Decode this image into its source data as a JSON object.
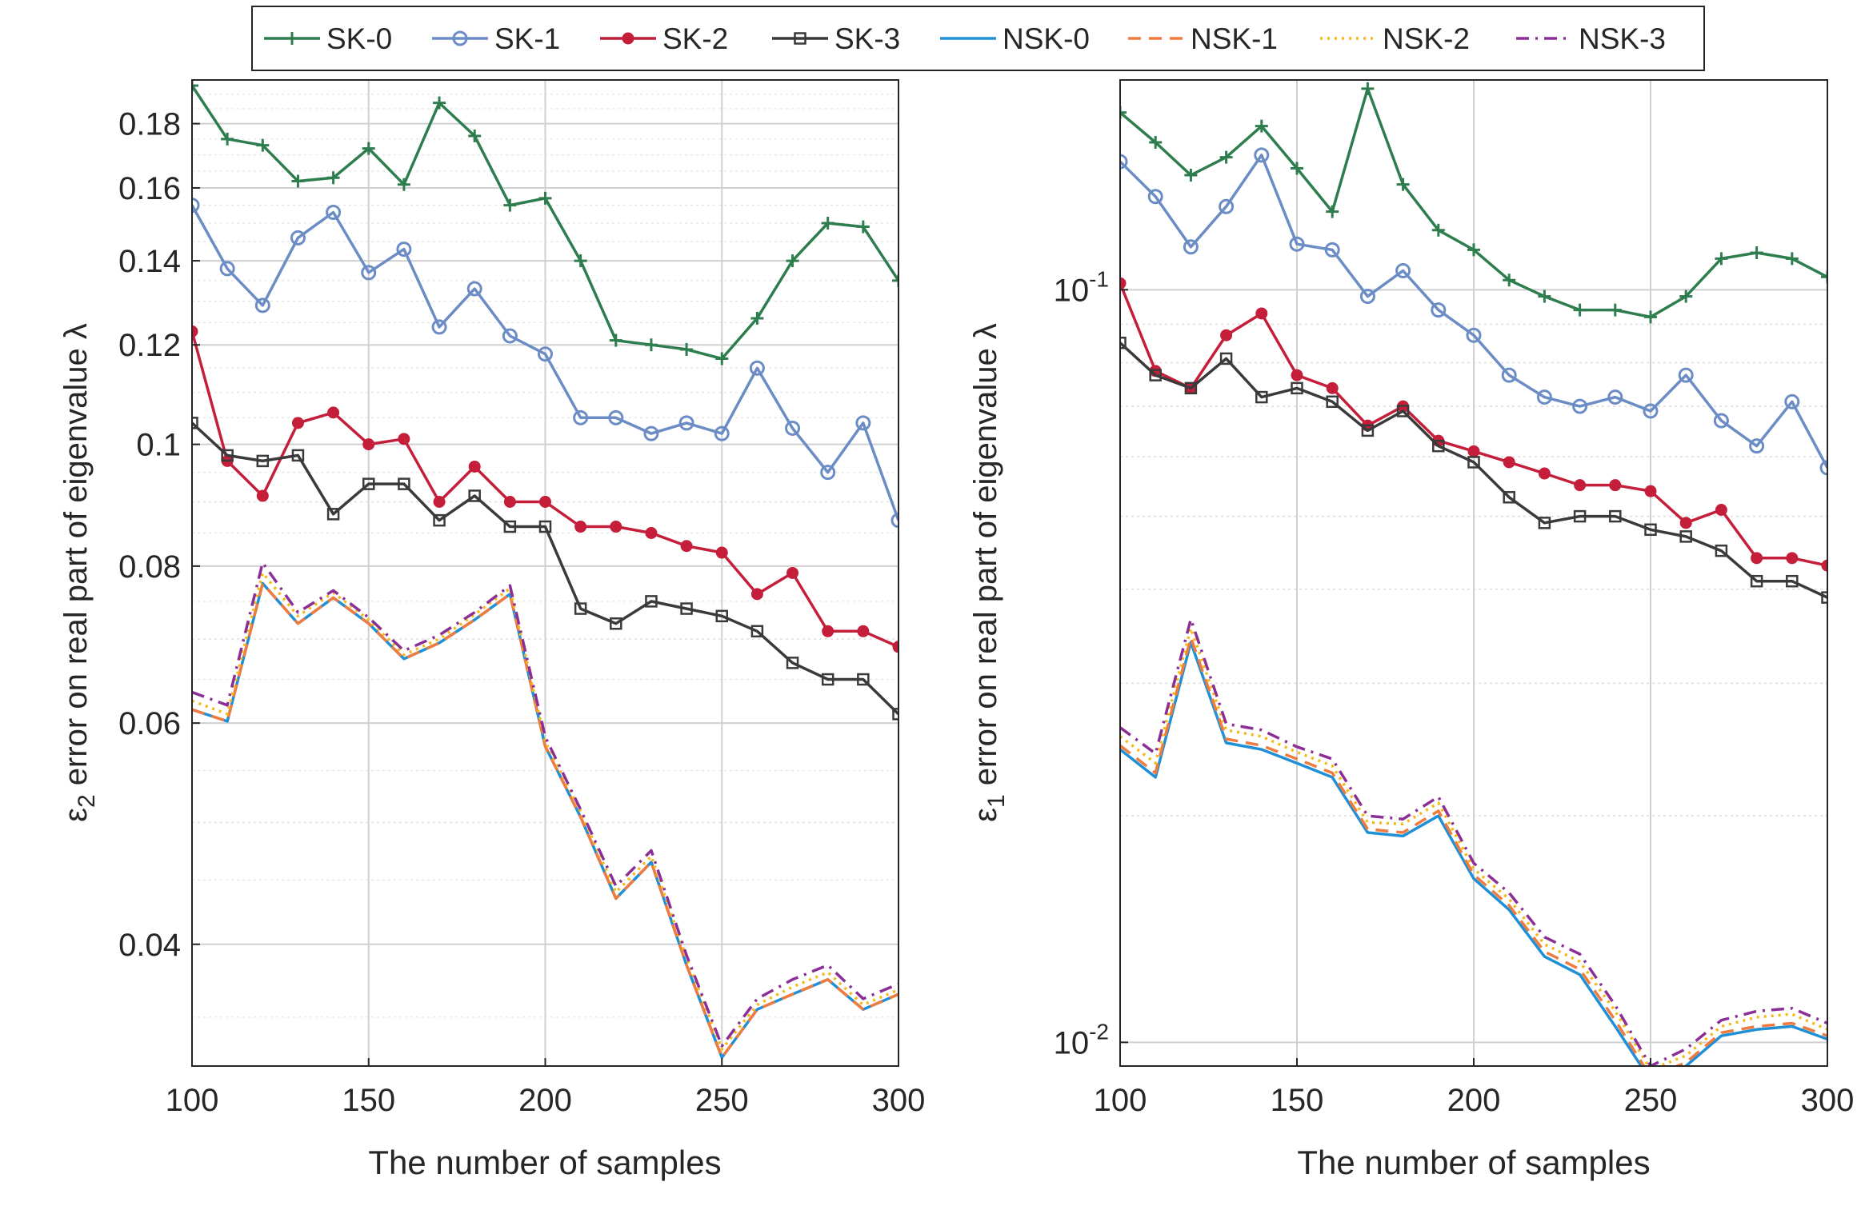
{
  "legend": {
    "placement": "top",
    "entries": [
      {
        "label": "SK-0",
        "color": "#2e7d4f",
        "marker": "plus",
        "dash": "solid"
      },
      {
        "label": "SK-1",
        "color": "#6b8cc4",
        "marker": "circle",
        "dash": "solid"
      },
      {
        "label": "SK-2",
        "color": "#c41e3a",
        "marker": "dot",
        "dash": "solid"
      },
      {
        "label": "SK-3",
        "color": "#3a3a3a",
        "marker": "square",
        "dash": "solid"
      },
      {
        "label": "NSK-0",
        "color": "#1f8fd6",
        "marker": "none",
        "dash": "solid"
      },
      {
        "label": "NSK-1",
        "color": "#f07b3f",
        "marker": "none",
        "dash": "dashed"
      },
      {
        "label": "NSK-2",
        "color": "#f5b915",
        "marker": "none",
        "dash": "dotted"
      },
      {
        "label": "NSK-3",
        "color": "#8b2f97",
        "marker": "none",
        "dash": "dashdot"
      }
    ]
  },
  "chart_data": [
    {
      "type": "line",
      "xlabel": "The number of samples",
      "ylabel_prefix": "ε",
      "ylabel_sub": "2",
      "ylabel_rest": " error on real part of eigenvalue λ",
      "xlim": [
        100,
        300
      ],
      "ylim": [
        0.032,
        0.195
      ],
      "yscale": "log",
      "grid": true,
      "xticks": [
        100,
        150,
        200,
        250,
        300
      ],
      "yticks": [
        {
          "value": 0.04,
          "label": "0.04"
        },
        {
          "value": 0.06,
          "label": "0.06"
        },
        {
          "value": 0.08,
          "label": "0.08"
        },
        {
          "value": 0.1,
          "label": "0.1"
        },
        {
          "value": 0.12,
          "label": "0.12"
        },
        {
          "value": 0.14,
          "label": "0.14"
        },
        {
          "value": 0.16,
          "label": "0.16"
        },
        {
          "value": 0.18,
          "label": "0.18"
        }
      ],
      "x": [
        100,
        110,
        120,
        130,
        140,
        150,
        160,
        170,
        180,
        190,
        200,
        210,
        220,
        230,
        240,
        250,
        260,
        270,
        280,
        290,
        300
      ],
      "series": [
        {
          "name": "SK-0",
          "values": [
            0.193,
            0.175,
            0.173,
            0.162,
            0.163,
            0.172,
            0.161,
            0.187,
            0.176,
            0.155,
            0.157,
            0.14,
            0.121,
            0.12,
            0.119,
            0.117,
            0.126,
            0.14,
            0.15,
            0.149,
            0.135
          ]
        },
        {
          "name": "SK-1",
          "values": [
            0.155,
            0.138,
            0.129,
            0.146,
            0.153,
            0.137,
            0.143,
            0.124,
            0.133,
            0.122,
            0.118,
            0.105,
            0.105,
            0.102,
            0.104,
            0.102,
            0.115,
            0.103,
            0.095,
            0.104,
            0.087
          ]
        },
        {
          "name": "SK-2",
          "values": [
            0.123,
            0.097,
            0.091,
            0.104,
            0.106,
            0.1,
            0.101,
            0.09,
            0.096,
            0.09,
            0.09,
            0.086,
            0.086,
            0.085,
            0.083,
            0.082,
            0.076,
            0.079,
            0.071,
            0.071,
            0.069
          ]
        },
        {
          "name": "SK-3",
          "values": [
            0.104,
            0.098,
            0.097,
            0.098,
            0.088,
            0.093,
            0.093,
            0.087,
            0.091,
            0.086,
            0.086,
            0.074,
            0.072,
            0.075,
            0.074,
            0.073,
            0.071,
            0.067,
            0.065,
            0.065,
            0.061
          ]
        },
        {
          "name": "NSK-0",
          "values": [
            0.0615,
            0.0602,
            0.0775,
            0.072,
            0.0755,
            0.072,
            0.0675,
            0.0695,
            0.0725,
            0.076,
            0.0575,
            0.0505,
            0.0435,
            0.0465,
            0.0385,
            0.0325,
            0.0355,
            0.0365,
            0.0375,
            0.0355,
            0.0365
          ]
        },
        {
          "name": "NSK-1",
          "values": [
            0.0615,
            0.0602,
            0.0775,
            0.072,
            0.0755,
            0.072,
            0.0675,
            0.0695,
            0.0725,
            0.076,
            0.0575,
            0.0505,
            0.0435,
            0.0465,
            0.0385,
            0.0325,
            0.0355,
            0.0365,
            0.0375,
            0.0355,
            0.0365
          ]
        },
        {
          "name": "NSK-2",
          "values": [
            0.0625,
            0.061,
            0.079,
            0.073,
            0.0762,
            0.0725,
            0.068,
            0.07,
            0.0732,
            0.0768,
            0.058,
            0.051,
            0.044,
            0.047,
            0.039,
            0.033,
            0.0358,
            0.037,
            0.038,
            0.0358,
            0.0368
          ]
        },
        {
          "name": "NSK-3",
          "values": [
            0.0635,
            0.062,
            0.0805,
            0.0735,
            0.0765,
            0.0728,
            0.0685,
            0.0705,
            0.0735,
            0.0772,
            0.0585,
            0.0512,
            0.0445,
            0.0475,
            0.0392,
            0.0332,
            0.0362,
            0.0375,
            0.0385,
            0.0362,
            0.0372
          ]
        }
      ]
    },
    {
      "type": "line",
      "xlabel": "The number of samples",
      "ylabel_prefix": "ε",
      "ylabel_sub": "1",
      "ylabel_rest": " error on real part of eigenvalue λ",
      "xlim": [
        100,
        300
      ],
      "ylim": [
        0.0093,
        0.19
      ],
      "yscale": "log",
      "grid": true,
      "xticks": [
        100,
        150,
        200,
        250,
        300
      ],
      "yticks": [
        {
          "value": 0.01,
          "label_base": "10",
          "label_exp": "-2"
        },
        {
          "value": 0.1,
          "label_base": "10",
          "label_exp": "-1"
        }
      ],
      "x": [
        100,
        110,
        120,
        130,
        140,
        150,
        160,
        170,
        180,
        190,
        200,
        210,
        220,
        230,
        240,
        250,
        260,
        270,
        280,
        290,
        300
      ],
      "series": [
        {
          "name": "SK-0",
          "values": [
            0.172,
            0.157,
            0.142,
            0.15,
            0.165,
            0.145,
            0.127,
            0.185,
            0.138,
            0.12,
            0.113,
            0.103,
            0.098,
            0.094,
            0.094,
            0.092,
            0.098,
            0.11,
            0.112,
            0.11,
            0.104
          ]
        },
        {
          "name": "SK-1",
          "values": [
            0.148,
            0.133,
            0.114,
            0.129,
            0.151,
            0.115,
            0.113,
            0.098,
            0.106,
            0.094,
            0.087,
            0.077,
            0.072,
            0.07,
            0.072,
            0.069,
            0.077,
            0.067,
            0.062,
            0.071,
            0.058
          ]
        },
        {
          "name": "SK-2",
          "values": [
            0.102,
            0.078,
            0.074,
            0.087,
            0.093,
            0.077,
            0.074,
            0.066,
            0.07,
            0.063,
            0.061,
            0.059,
            0.057,
            0.055,
            0.055,
            0.054,
            0.049,
            0.051,
            0.044,
            0.044,
            0.043
          ]
        },
        {
          "name": "SK-3",
          "values": [
            0.085,
            0.077,
            0.074,
            0.081,
            0.072,
            0.074,
            0.071,
            0.065,
            0.069,
            0.062,
            0.059,
            0.053,
            0.049,
            0.05,
            0.05,
            0.048,
            0.047,
            0.045,
            0.041,
            0.041,
            0.039
          ]
        },
        {
          "name": "NSK-0",
          "values": [
            0.0245,
            0.0225,
            0.034,
            0.025,
            0.0245,
            0.0235,
            0.0225,
            0.019,
            0.0188,
            0.02,
            0.0165,
            0.015,
            0.013,
            0.0123,
            0.0105,
            0.0089,
            0.0093,
            0.0102,
            0.0104,
            0.0105,
            0.0101
          ]
        },
        {
          "name": "NSK-1",
          "values": [
            0.0248,
            0.0228,
            0.0345,
            0.0253,
            0.0248,
            0.0238,
            0.0228,
            0.0192,
            0.019,
            0.0203,
            0.0167,
            0.0152,
            0.0132,
            0.0125,
            0.0107,
            0.009,
            0.0094,
            0.0103,
            0.0105,
            0.0106,
            0.0102
          ]
        },
        {
          "name": "NSK-2",
          "values": [
            0.0255,
            0.0235,
            0.0355,
            0.026,
            0.0255,
            0.0243,
            0.0233,
            0.0196,
            0.0195,
            0.0208,
            0.017,
            0.0155,
            0.0135,
            0.0128,
            0.011,
            0.0092,
            0.0096,
            0.0105,
            0.0108,
            0.0109,
            0.0104
          ]
        },
        {
          "name": "NSK-3",
          "values": [
            0.0262,
            0.0242,
            0.0365,
            0.0265,
            0.026,
            0.0247,
            0.0238,
            0.02,
            0.0198,
            0.0212,
            0.0173,
            0.0158,
            0.0138,
            0.0131,
            0.0112,
            0.0093,
            0.0098,
            0.0107,
            0.011,
            0.0111,
            0.0106
          ]
        }
      ]
    }
  ]
}
